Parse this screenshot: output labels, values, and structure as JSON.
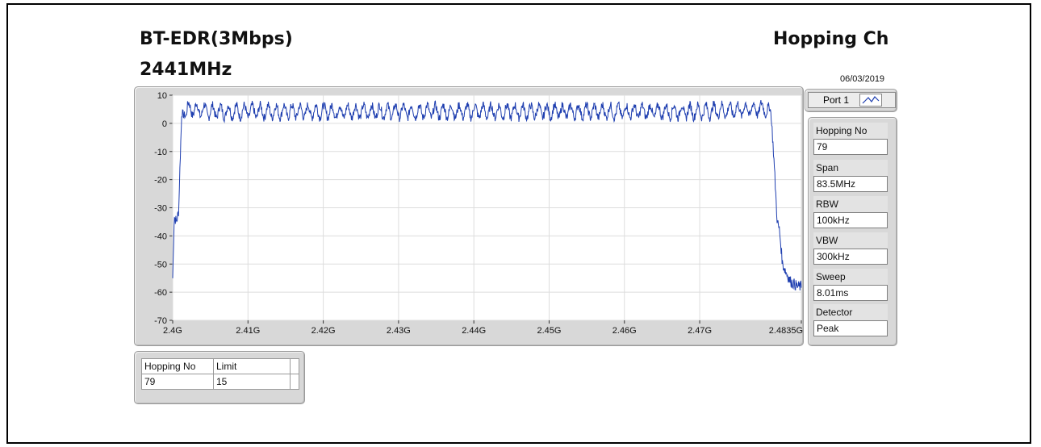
{
  "header": {
    "title_left": "BT-EDR(3Mbps)",
    "title_freq": "2441MHz",
    "title_right": "Hopping Ch",
    "date": "06/03/2019"
  },
  "port": {
    "label": "Port 1",
    "icon": "trace-icon"
  },
  "settings": [
    {
      "label": "Hopping No",
      "value": "79"
    },
    {
      "label": "Span",
      "value": "83.5MHz"
    },
    {
      "label": "RBW",
      "value": "100kHz"
    },
    {
      "label": "VBW",
      "value": "300kHz"
    },
    {
      "label": "Sweep",
      "value": "8.01ms"
    },
    {
      "label": "Detector",
      "value": "Peak"
    }
  ],
  "limit_table": {
    "headers": [
      "Hopping No",
      "Limit"
    ],
    "row": [
      "79",
      "15"
    ]
  },
  "colors": {
    "trace": "#1f3fb0",
    "plot_bg": "#ffffff",
    "panel_bg": "#d8d8d8"
  },
  "chart_data": {
    "type": "line",
    "title": "",
    "xlabel": "",
    "ylabel": "",
    "xlim": [
      2.4,
      2.4835
    ],
    "ylim": [
      -70,
      10
    ],
    "grid": true,
    "x_ticks": [
      {
        "value": 2.4,
        "label": "2.4G"
      },
      {
        "value": 2.41,
        "label": "2.41G"
      },
      {
        "value": 2.42,
        "label": "2.42G"
      },
      {
        "value": 2.43,
        "label": "2.43G"
      },
      {
        "value": 2.44,
        "label": "2.44G"
      },
      {
        "value": 2.45,
        "label": "2.45G"
      },
      {
        "value": 2.46,
        "label": "2.46G"
      },
      {
        "value": 2.47,
        "label": "2.47G"
      },
      {
        "value": 2.4835,
        "label": "2.4835G"
      }
    ],
    "y_ticks": [
      {
        "value": 10,
        "label": "10"
      },
      {
        "value": 0,
        "label": "0"
      },
      {
        "value": -10,
        "label": "-10"
      },
      {
        "value": -20,
        "label": "-20"
      },
      {
        "value": -30,
        "label": "-30"
      },
      {
        "value": -40,
        "label": "-40"
      },
      {
        "value": -50,
        "label": "-50"
      },
      {
        "value": -60,
        "label": "-60"
      },
      {
        "value": -70,
        "label": "-70"
      }
    ],
    "hopping_channels": 79,
    "series": [
      {
        "x": [
          2.4,
          2.4002,
          2.4005,
          2.4008,
          2.401,
          2.4012,
          2.4014,
          2.4016,
          2.4018,
          2.402,
          2.405,
          2.41,
          2.42,
          2.43,
          2.44,
          2.45,
          2.46,
          2.47,
          2.479,
          2.4795,
          2.4798,
          2.48,
          2.4803,
          2.4806,
          2.481,
          2.4815,
          2.482,
          2.4825,
          2.483,
          2.4835
        ],
        "values": [
          -55,
          -33,
          -35,
          -31,
          -12,
          3,
          5,
          6,
          4,
          6,
          5,
          5,
          5,
          5,
          5,
          5,
          5,
          5,
          6,
          3,
          -10,
          -20,
          -35,
          -38,
          -50,
          -53,
          -56,
          -57,
          -58,
          -58
        ]
      }
    ]
  }
}
